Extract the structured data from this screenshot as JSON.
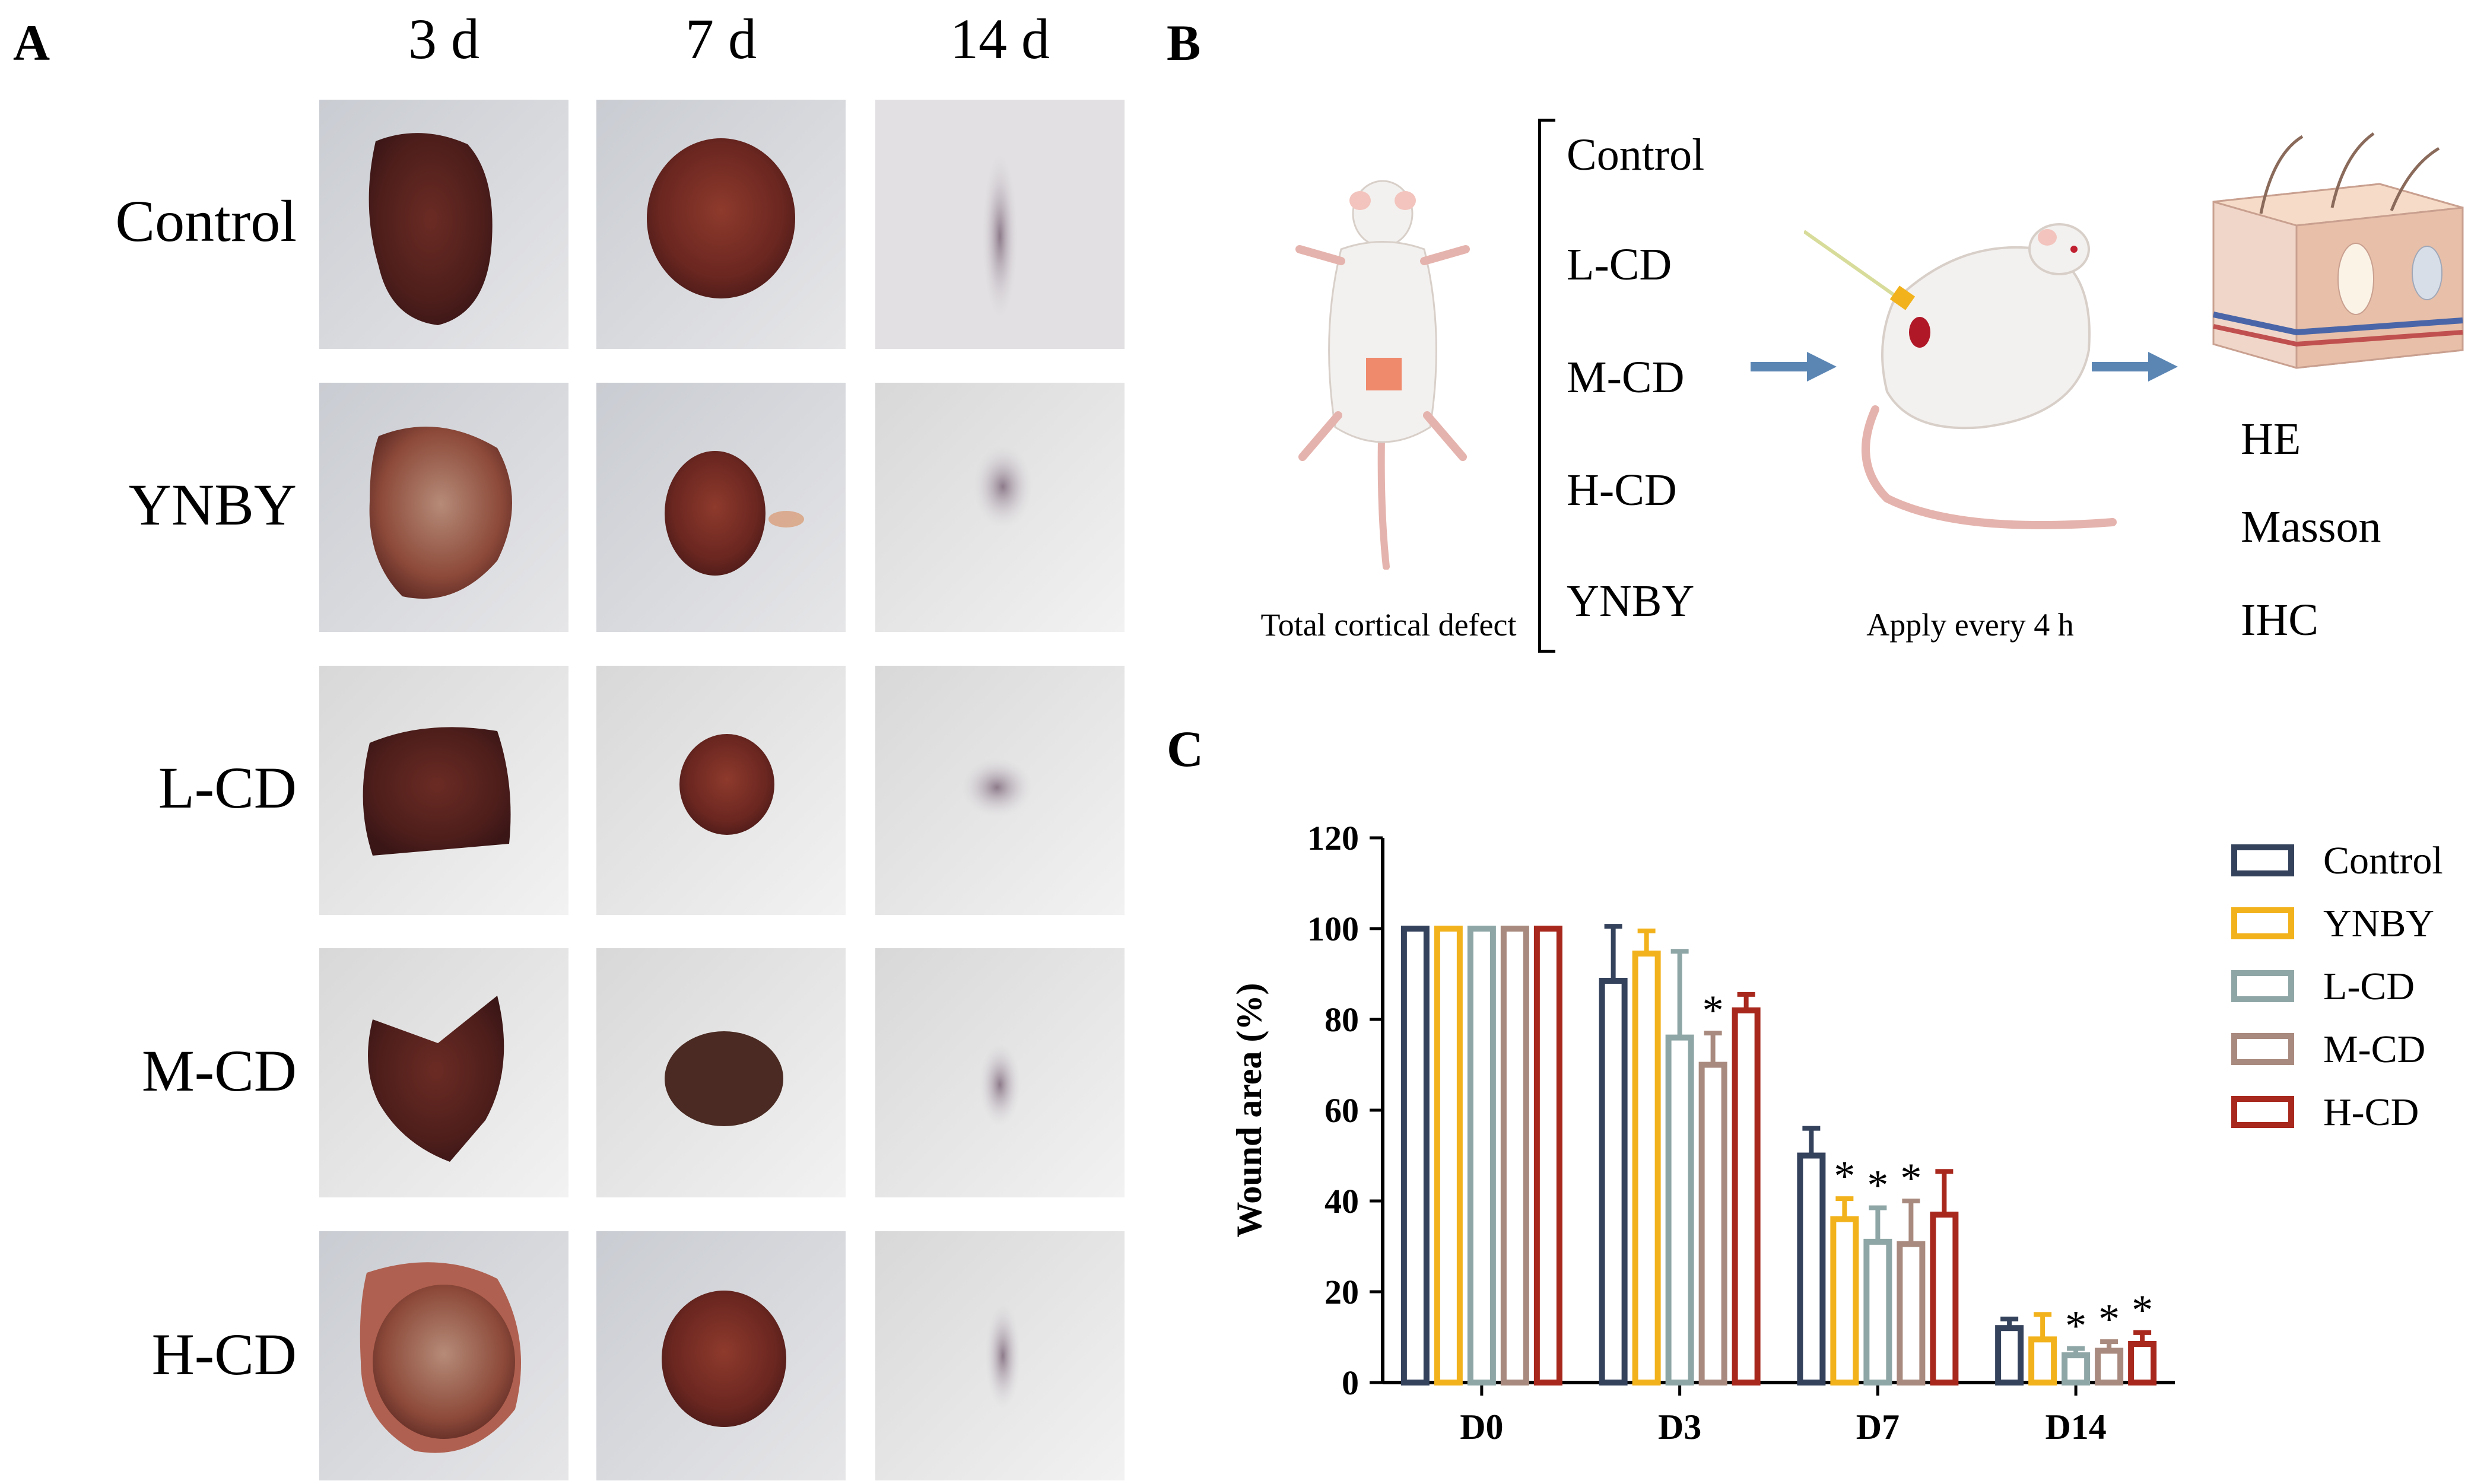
{
  "panel_labels": {
    "a": "A",
    "b": "B",
    "c": "C"
  },
  "panel_a": {
    "columns": [
      "3 d",
      "7 d",
      "14 d"
    ],
    "rows": [
      "Control",
      "YNBY",
      "L-CD",
      "M-CD",
      "H-CD"
    ]
  },
  "panel_b": {
    "groups": [
      "Control",
      "L-CD",
      "M-CD",
      "H-CD",
      "YNBY"
    ],
    "caption_defect": "Total cortical defect",
    "caption_apply": "Apply every 4 h",
    "analyses": [
      "HE",
      "Masson",
      "IHC"
    ]
  },
  "colors": {
    "Control": "#34425c",
    "YNBY": "#f2b21c",
    "L-CD": "#8fa6a6",
    "M-CD": "#a98a7e",
    "H-CD": "#a8281d",
    "arrow": "#5b86b4",
    "wound": "#f08a6c"
  },
  "chart_data": {
    "type": "bar",
    "title": "",
    "xlabel": "",
    "ylabel": "Wound area (%)",
    "ylim": [
      0,
      120
    ],
    "yticks": [
      0,
      20,
      40,
      60,
      80,
      100,
      120
    ],
    "categories": [
      "D0",
      "D3",
      "D7",
      "D14"
    ],
    "legend_position": "right",
    "series": [
      {
        "name": "Control",
        "values": [
          100,
          88.5,
          50,
          12
        ],
        "errors": [
          0,
          12,
          6,
          2
        ],
        "significant": [
          false,
          false,
          false,
          false
        ]
      },
      {
        "name": "YNBY",
        "values": [
          100,
          94.5,
          36,
          9.5
        ],
        "errors": [
          0,
          5,
          4.5,
          5.5
        ],
        "significant": [
          false,
          false,
          true,
          false
        ]
      },
      {
        "name": "L-CD",
        "values": [
          100,
          76,
          31,
          6
        ],
        "errors": [
          0,
          19,
          7.5,
          1.5
        ],
        "significant": [
          false,
          false,
          true,
          true
        ]
      },
      {
        "name": "M-CD",
        "values": [
          100,
          70,
          30.5,
          7
        ],
        "errors": [
          0,
          7,
          9.5,
          2
        ],
        "significant": [
          false,
          true,
          true,
          true
        ]
      },
      {
        "name": "H-CD",
        "values": [
          100,
          82,
          37,
          8.5
        ],
        "errors": [
          0,
          3.5,
          9.5,
          2.5
        ],
        "significant": [
          false,
          false,
          false,
          true
        ]
      }
    ],
    "significance_marker": "*"
  }
}
